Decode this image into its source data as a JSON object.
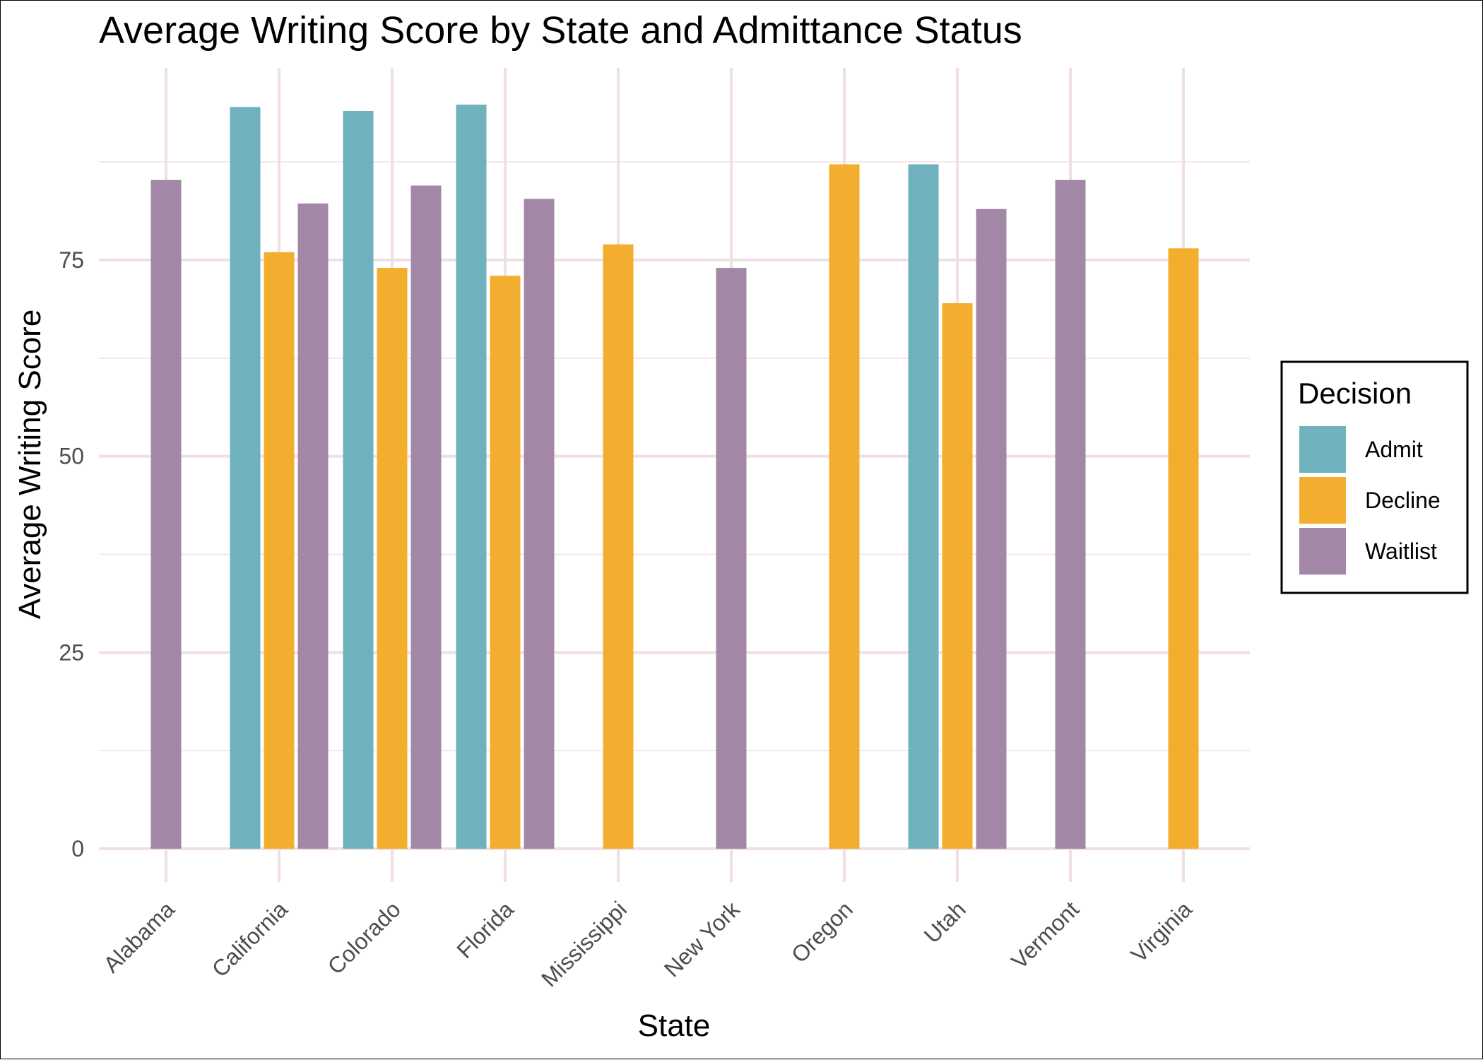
{
  "chart_data": {
    "type": "bar",
    "title": "Average Writing Score by State and Admittance Status",
    "xlabel": "State",
    "ylabel": "Average Writing Score",
    "categories": [
      "Alabama",
      "California",
      "Colorado",
      "Florida",
      "Mississippi",
      "New York",
      "Oregon",
      "Utah",
      "Vermont",
      "Virginia"
    ],
    "series": [
      {
        "name": "Admit",
        "color": "#6fb1bd",
        "values": [
          null,
          94.5,
          94.0,
          94.8,
          null,
          null,
          null,
          87.2,
          null,
          null
        ]
      },
      {
        "name": "Decline",
        "color": "#f4ae2f",
        "values": [
          null,
          76.0,
          74.0,
          73.0,
          77.0,
          null,
          87.2,
          69.5,
          null,
          76.5
        ]
      },
      {
        "name": "Waitlist",
        "color": "#a288a6",
        "values": [
          85.2,
          82.2,
          84.5,
          82.8,
          null,
          74.0,
          null,
          81.5,
          85.2,
          null
        ]
      }
    ],
    "y_ticks": [
      0,
      25,
      50,
      75
    ],
    "ylim": [
      0,
      100
    ],
    "grid": true,
    "legend": {
      "title": "Decision",
      "placement": "right"
    }
  }
}
